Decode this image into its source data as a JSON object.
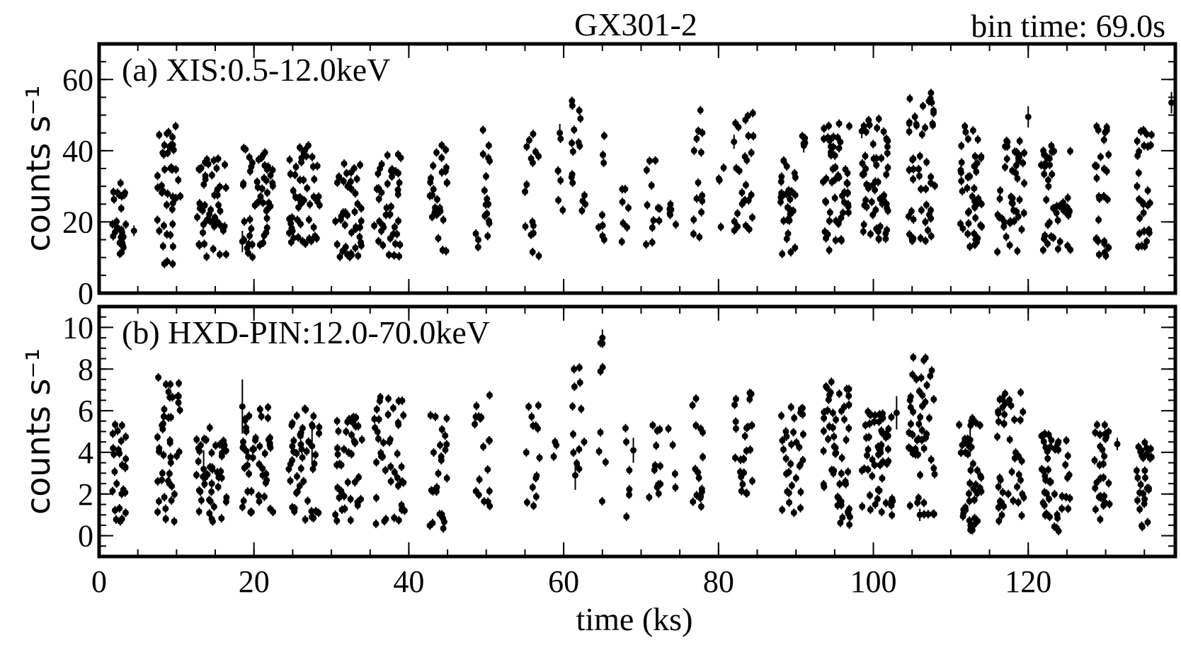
{
  "header": {
    "title": "GX301-2",
    "bin_time": "bin time: 69.0s"
  },
  "chart_data": [
    {
      "type": "scatter",
      "panel_label": "(a) XIS:0.5-12.0keV",
      "ylabel": "counts s⁻¹",
      "xlabel": "time (ks)",
      "xlim": [
        0,
        139
      ],
      "ylim": [
        0,
        70
      ],
      "yticks": [
        0,
        20,
        40,
        60
      ],
      "xticks": [
        0,
        20,
        40,
        60,
        80,
        100,
        120
      ],
      "grid": false,
      "marker_color": "#000000",
      "segments": [
        {
          "x_start": 1.5,
          "x_end": 3.5,
          "n": 28,
          "y_min": 9,
          "y_max": 31
        },
        {
          "x_start": 7.5,
          "x_end": 10.5,
          "n": 42,
          "y_min": 8,
          "y_max": 47
        },
        {
          "x_start": 12.5,
          "x_end": 16.5,
          "n": 48,
          "y_min": 10,
          "y_max": 38
        },
        {
          "x_start": 18.5,
          "x_end": 22.5,
          "n": 50,
          "y_min": 10,
          "y_max": 41
        },
        {
          "x_start": 24.5,
          "x_end": 28.5,
          "n": 50,
          "y_min": 13,
          "y_max": 42
        },
        {
          "x_start": 30.5,
          "x_end": 34.0,
          "n": 42,
          "y_min": 10,
          "y_max": 37
        },
        {
          "x_start": 35.5,
          "x_end": 39.0,
          "n": 42,
          "y_min": 10,
          "y_max": 39
        },
        {
          "x_start": 42.5,
          "x_end": 45.0,
          "n": 26,
          "y_min": 10,
          "y_max": 43
        },
        {
          "x_start": 48.5,
          "x_end": 50.5,
          "n": 18,
          "y_min": 12,
          "y_max": 47
        },
        {
          "x_start": 55.0,
          "x_end": 57.0,
          "n": 16,
          "y_min": 10,
          "y_max": 49
        },
        {
          "x_start": 59.0,
          "x_end": 60.0,
          "n": 6,
          "y_min": 19,
          "y_max": 45
        },
        {
          "x_start": 61.0,
          "x_end": 63.0,
          "n": 16,
          "y_min": 21,
          "y_max": 57
        },
        {
          "x_start": 64.5,
          "x_end": 65.5,
          "n": 8,
          "y_min": 15,
          "y_max": 48
        },
        {
          "x_start": 67.5,
          "x_end": 68.5,
          "n": 7,
          "y_min": 13,
          "y_max": 35
        },
        {
          "x_start": 70.5,
          "x_end": 72.5,
          "n": 12,
          "y_min": 13,
          "y_max": 40
        },
        {
          "x_start": 73.5,
          "x_end": 74.5,
          "n": 6,
          "y_min": 13,
          "y_max": 29
        },
        {
          "x_start": 76.5,
          "x_end": 78.0,
          "n": 14,
          "y_min": 15,
          "y_max": 53
        },
        {
          "x_start": 80.0,
          "x_end": 81.0,
          "n": 4,
          "y_min": 15,
          "y_max": 37
        },
        {
          "x_start": 82.0,
          "x_end": 84.5,
          "n": 26,
          "y_min": 16,
          "y_max": 52
        },
        {
          "x_start": 88.0,
          "x_end": 90.0,
          "n": 30,
          "y_min": 10,
          "y_max": 38
        },
        {
          "x_start": 90.5,
          "x_end": 91.5,
          "n": 4,
          "y_min": 39,
          "y_max": 45
        },
        {
          "x_start": 93.5,
          "x_end": 97.0,
          "n": 52,
          "y_min": 12,
          "y_max": 49
        },
        {
          "x_start": 98.5,
          "x_end": 102.0,
          "n": 56,
          "y_min": 15,
          "y_max": 50
        },
        {
          "x_start": 104.5,
          "x_end": 108.0,
          "n": 50,
          "y_min": 14,
          "y_max": 57
        },
        {
          "x_start": 111.0,
          "x_end": 114.0,
          "n": 44,
          "y_min": 13,
          "y_max": 47
        },
        {
          "x_start": 116.0,
          "x_end": 119.5,
          "n": 44,
          "y_min": 11,
          "y_max": 46
        },
        {
          "x_start": 121.5,
          "x_end": 125.5,
          "n": 44,
          "y_min": 12,
          "y_max": 44
        },
        {
          "x_start": 128.5,
          "x_end": 130.5,
          "n": 28,
          "y_min": 10,
          "y_max": 47
        },
        {
          "x_start": 134.0,
          "x_end": 136.0,
          "n": 28,
          "y_min": 13,
          "y_max": 47
        }
      ],
      "points_with_errorbars": [
        {
          "x": 4.5,
          "y": 17.5,
          "err": 1.5
        },
        {
          "x": 18.5,
          "y": 14.5,
          "err": 3.0
        },
        {
          "x": 59.5,
          "y": 45.0,
          "err": 2.5
        },
        {
          "x": 82.0,
          "y": 42.5,
          "err": 2.0
        },
        {
          "x": 91.0,
          "y": 42.0,
          "err": 2.5
        },
        {
          "x": 98.5,
          "y": 45.5,
          "err": 2.0
        },
        {
          "x": 120.0,
          "y": 49.5,
          "err": 3.0
        },
        {
          "x": 138.5,
          "y": 53.5,
          "err": 3.0
        }
      ]
    },
    {
      "type": "scatter",
      "panel_label": "(b) HXD-PIN:12.0-70.0keV",
      "ylabel": "counts s⁻¹",
      "xlabel": "time (ks)",
      "xlim": [
        0,
        139
      ],
      "ylim": [
        -1,
        11
      ],
      "yticks": [
        0,
        2,
        4,
        6,
        8,
        10
      ],
      "xticks": [
        0,
        20,
        40,
        60,
        80,
        100,
        120
      ],
      "grid": false,
      "marker_color": "#000000",
      "segments": [
        {
          "x_start": 1.5,
          "x_end": 3.5,
          "n": 26,
          "y_min": 0.6,
          "y_max": 5.6
        },
        {
          "x_start": 7.5,
          "x_end": 10.5,
          "n": 44,
          "y_min": 0.5,
          "y_max": 7.7
        },
        {
          "x_start": 12.5,
          "x_end": 16.5,
          "n": 46,
          "y_min": 0.6,
          "y_max": 5.2
        },
        {
          "x_start": 18.5,
          "x_end": 22.5,
          "n": 46,
          "y_min": 0.6,
          "y_max": 6.4
        },
        {
          "x_start": 24.5,
          "x_end": 28.5,
          "n": 46,
          "y_min": 0.7,
          "y_max": 6.1
        },
        {
          "x_start": 30.5,
          "x_end": 34.0,
          "n": 40,
          "y_min": 0.7,
          "y_max": 5.7
        },
        {
          "x_start": 35.5,
          "x_end": 39.5,
          "n": 42,
          "y_min": 0.5,
          "y_max": 6.9
        },
        {
          "x_start": 42.5,
          "x_end": 45.0,
          "n": 24,
          "y_min": 0.1,
          "y_max": 5.9
        },
        {
          "x_start": 48.5,
          "x_end": 50.5,
          "n": 18,
          "y_min": 1.4,
          "y_max": 6.8
        },
        {
          "x_start": 55.0,
          "x_end": 57.0,
          "n": 14,
          "y_min": 1.0,
          "y_max": 6.4
        },
        {
          "x_start": 58.5,
          "x_end": 59.5,
          "n": 3,
          "y_min": 1.9,
          "y_max": 4.6
        },
        {
          "x_start": 61.0,
          "x_end": 63.0,
          "n": 12,
          "y_min": 1.6,
          "y_max": 8.1
        },
        {
          "x_start": 64.5,
          "x_end": 65.5,
          "n": 8,
          "y_min": 0.5,
          "y_max": 9.5
        },
        {
          "x_start": 67.5,
          "x_end": 68.5,
          "n": 6,
          "y_min": 0.9,
          "y_max": 5.4
        },
        {
          "x_start": 70.5,
          "x_end": 72.5,
          "n": 12,
          "y_min": 0.7,
          "y_max": 5.9
        },
        {
          "x_start": 73.5,
          "x_end": 74.5,
          "n": 4,
          "y_min": 1.0,
          "y_max": 5.8
        },
        {
          "x_start": 76.5,
          "x_end": 78.0,
          "n": 16,
          "y_min": 1.0,
          "y_max": 8.1
        },
        {
          "x_start": 82.0,
          "x_end": 84.5,
          "n": 26,
          "y_min": 1.5,
          "y_max": 7.4
        },
        {
          "x_start": 88.0,
          "x_end": 91.0,
          "n": 32,
          "y_min": 0.5,
          "y_max": 6.3
        },
        {
          "x_start": 93.5,
          "x_end": 97.0,
          "n": 54,
          "y_min": 0.5,
          "y_max": 7.7
        },
        {
          "x_start": 98.5,
          "x_end": 102.5,
          "n": 56,
          "y_min": 0.9,
          "y_max": 6.0
        },
        {
          "x_start": 104.5,
          "x_end": 108.0,
          "n": 50,
          "y_min": 1.0,
          "y_max": 8.6
        },
        {
          "x_start": 111.0,
          "x_end": 114.0,
          "n": 44,
          "y_min": 0.2,
          "y_max": 5.8
        },
        {
          "x_start": 116.0,
          "x_end": 119.5,
          "n": 44,
          "y_min": 0.6,
          "y_max": 6.9
        },
        {
          "x_start": 121.5,
          "x_end": 125.5,
          "n": 46,
          "y_min": 0.2,
          "y_max": 5.1
        },
        {
          "x_start": 128.5,
          "x_end": 130.5,
          "n": 28,
          "y_min": 0.6,
          "y_max": 5.5
        },
        {
          "x_start": 134.0,
          "x_end": 136.0,
          "n": 28,
          "y_min": 0.3,
          "y_max": 4.5
        }
      ],
      "points_with_errorbars": [
        {
          "x": 13.5,
          "y": 3.2,
          "err": 0.9
        },
        {
          "x": 18.5,
          "y": 6.2,
          "err": 1.3
        },
        {
          "x": 27.5,
          "y": 4.3,
          "err": 0.8
        },
        {
          "x": 61.5,
          "y": 2.9,
          "err": 0.7
        },
        {
          "x": 65.0,
          "y": 9.5,
          "err": 0.4
        },
        {
          "x": 69.0,
          "y": 4.1,
          "err": 0.6
        },
        {
          "x": 103.0,
          "y": 5.9,
          "err": 0.8
        },
        {
          "x": 106.0,
          "y": 1.0,
          "err": 0.3
        },
        {
          "x": 112.5,
          "y": 4.6,
          "err": 0.8
        },
        {
          "x": 131.5,
          "y": 4.4,
          "err": 0.3
        }
      ]
    }
  ]
}
